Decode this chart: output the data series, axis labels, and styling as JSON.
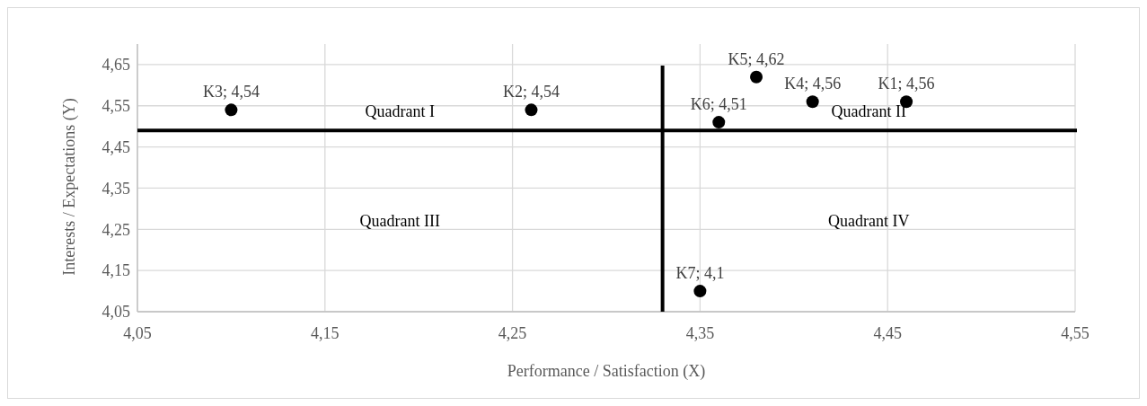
{
  "chart_data": {
    "type": "scatter",
    "xlabel": "Performance / Satisfaction (X)",
    "ylabel": "Interests / Expectations (Y)",
    "series": [
      {
        "color": "#000000",
        "x": [
          4.46,
          4.26,
          4.1,
          4.41,
          4.38,
          4.36,
          4.35
        ],
        "values": [
          4.56,
          4.54,
          4.54,
          4.56,
          4.62,
          4.51,
          4.1
        ],
        "value_labels": [
          "K1; 4,56",
          "K2; 4,54",
          "K3; 4,54",
          "K4; 4,56",
          "K5; 4,62",
          "K6; 4,51",
          "K7; 4,1"
        ]
      }
    ],
    "xlim": [
      4.05,
      4.55
    ],
    "xticks": [
      {
        "value": 4.05,
        "label": "4,05"
      },
      {
        "value": 4.15,
        "label": "4,15"
      },
      {
        "value": 4.25,
        "label": "4,25"
      },
      {
        "value": 4.35,
        "label": "4,35"
      },
      {
        "value": 4.45,
        "label": "4,45"
      },
      {
        "value": 4.55,
        "label": "4,55"
      }
    ],
    "ylim": [
      4.05,
      4.7
    ],
    "yticks": [
      {
        "value": 4.05,
        "label": "4,05"
      },
      {
        "value": 4.15,
        "label": "4,15"
      },
      {
        "value": 4.25,
        "label": "4,25"
      },
      {
        "value": 4.35,
        "label": "4,35"
      },
      {
        "value": 4.45,
        "label": "4,45"
      },
      {
        "value": 4.55,
        "label": "4,55"
      },
      {
        "value": 4.65,
        "label": "4,65"
      }
    ],
    "ref_lines": [
      {
        "axis": "x",
        "value": 4.33,
        "color": "#000000"
      },
      {
        "axis": "y",
        "value": 4.49,
        "color": "#000000"
      }
    ],
    "annotations": [
      "Quadrant I",
      "Quadrant II",
      "Quadrant III",
      "Quadrant IV"
    ],
    "grid": true,
    "marker": "circle"
  }
}
